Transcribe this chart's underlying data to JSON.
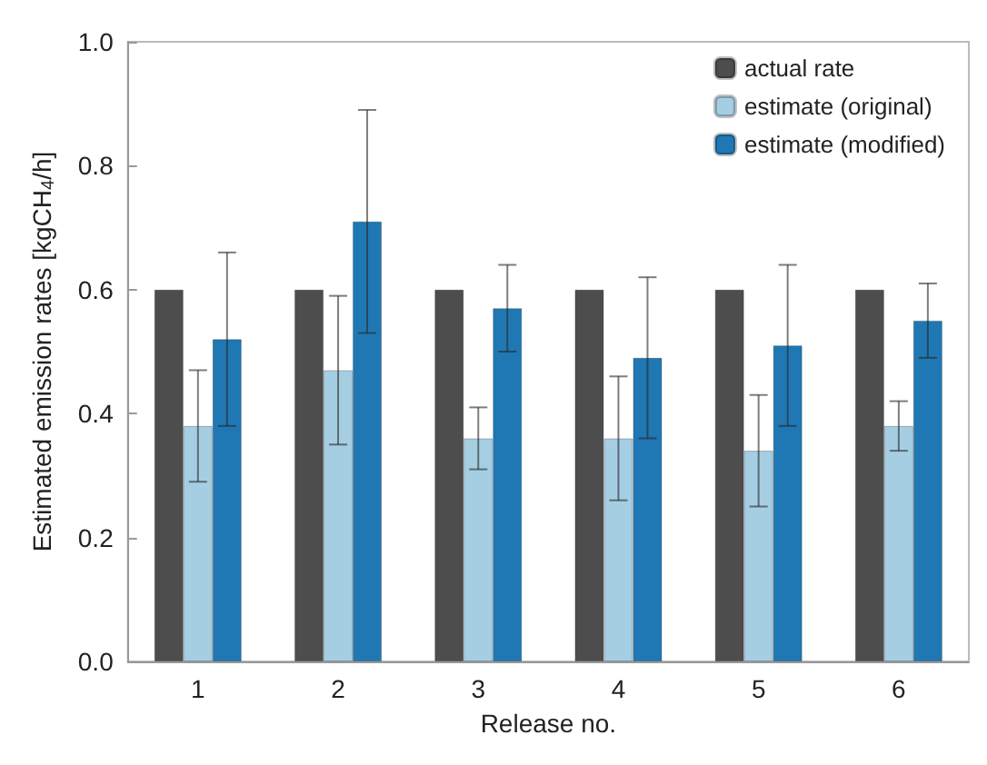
{
  "chart_data": {
    "type": "bar",
    "xlabel": "Release no.",
    "ylabel": "Estimated emission rates [kgCH$_{4}$/h]",
    "categories": [
      "1",
      "2",
      "3",
      "4",
      "5",
      "6"
    ],
    "series": [
      {
        "name": "actual rate",
        "color": "#4d4d4d",
        "values": [
          0.6,
          0.6,
          0.6,
          0.6,
          0.6,
          0.6
        ]
      },
      {
        "name": "estimate (original)",
        "color": "#a6cee3",
        "values": [
          0.38,
          0.47,
          0.36,
          0.36,
          0.34,
          0.38
        ],
        "errors": [
          [
            0.29,
            0.47
          ],
          [
            0.35,
            0.59
          ],
          [
            0.31,
            0.41
          ],
          [
            0.26,
            0.46
          ],
          [
            0.25,
            0.43
          ],
          [
            0.34,
            0.42
          ]
        ]
      },
      {
        "name": "estimate (modified)",
        "color": "#1f78b4",
        "values": [
          0.52,
          0.71,
          0.57,
          0.49,
          0.51,
          0.55
        ],
        "errors": [
          [
            0.38,
            0.66
          ],
          [
            0.53,
            0.89
          ],
          [
            0.5,
            0.64
          ],
          [
            0.36,
            0.62
          ],
          [
            0.38,
            0.64
          ],
          [
            0.49,
            0.61
          ]
        ]
      }
    ],
    "ylim": [
      0,
      1
    ],
    "yticks": [
      {
        "value": 0,
        "label": "0.0"
      },
      {
        "value": 0.2,
        "label": "0.2"
      },
      {
        "value": 0.4,
        "label": "0.4"
      },
      {
        "value": 0.6,
        "label": "0.6"
      },
      {
        "value": 0.8,
        "label": "0.8"
      },
      {
        "value": 1,
        "label": "1.0"
      }
    ],
    "grid": false,
    "legend": "top right"
  }
}
